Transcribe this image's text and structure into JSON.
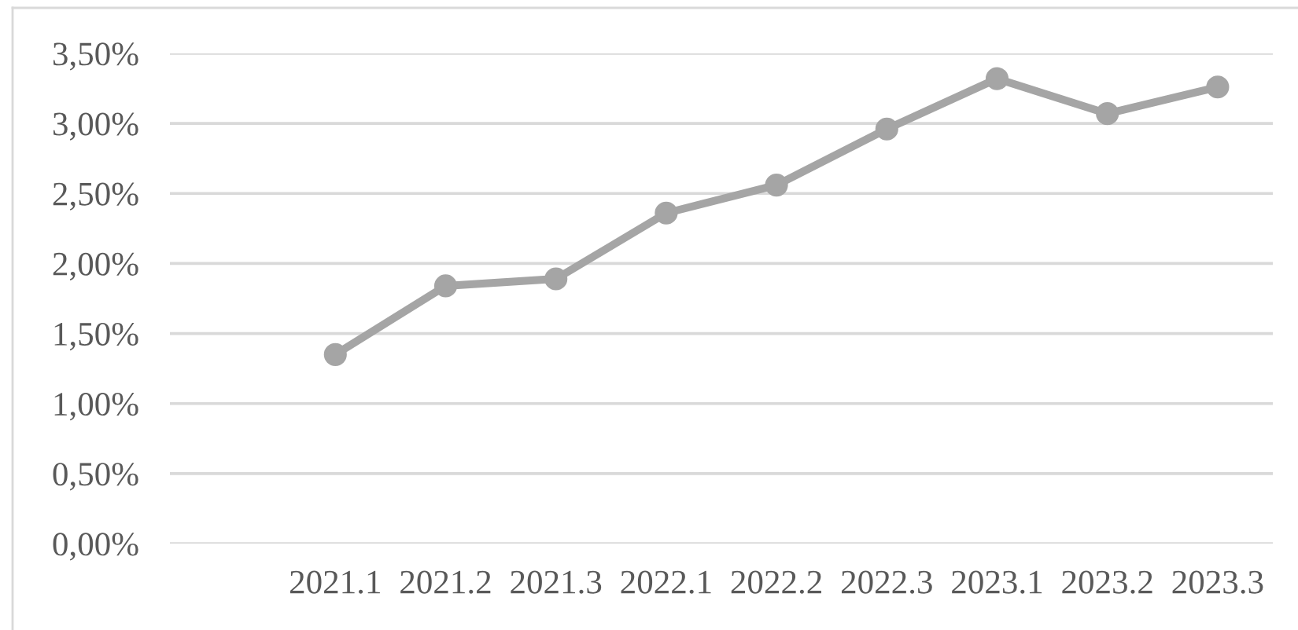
{
  "chart_data": {
    "type": "line",
    "categories": [
      null,
      "2021.1",
      "2021.2",
      "2021.3",
      "2022.1",
      "2022.2",
      "2022.3",
      "2023.1",
      "2023.2",
      "2023.3"
    ],
    "series": [
      {
        "color": "#a5a5a5",
        "values": [
          null,
          1.35,
          1.84,
          1.89,
          2.36,
          2.56,
          2.96,
          3.32,
          3.07,
          3.26
        ]
      }
    ],
    "ylim": [
      0,
      3.5
    ],
    "yticks": [
      {
        "value": 0,
        "label": "0,00%"
      },
      {
        "value": 0.5,
        "label": "0,50%"
      },
      {
        "value": 1,
        "label": "1,00%"
      },
      {
        "value": 1.5,
        "label": "1,50%"
      },
      {
        "value": 2,
        "label": "2,00%"
      },
      {
        "value": 2.5,
        "label": "2,50%"
      },
      {
        "value": 3,
        "label": "3,00%"
      },
      {
        "value": 3.5,
        "label": "3,50%"
      }
    ],
    "grid": "y",
    "marker": "circle",
    "line_style": "solid"
  }
}
